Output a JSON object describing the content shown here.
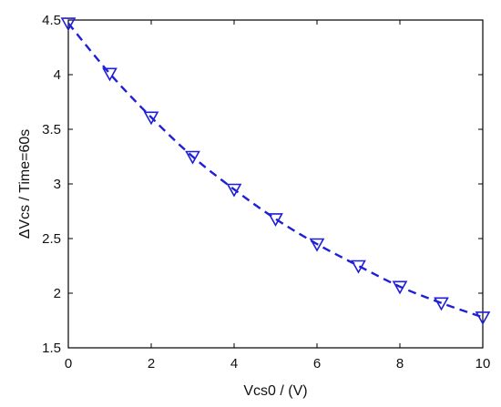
{
  "chart_data": {
    "type": "line",
    "xlabel": "Vcs0 / (V)",
    "ylabel": "ΔVcs / Time=60s",
    "xlim": [
      0,
      10
    ],
    "ylim": [
      1.5,
      4.5
    ],
    "xticks": [
      0,
      2,
      4,
      6,
      8,
      10
    ],
    "yticks": [
      1.5,
      2,
      2.5,
      3,
      3.5,
      4,
      4.5
    ],
    "xtick_labels": [
      "0",
      "2",
      "4",
      "6",
      "8",
      "10"
    ],
    "ytick_labels": [
      "1.5",
      "2",
      "2.5",
      "3",
      "3.5",
      "4",
      "4.5"
    ],
    "grid": false,
    "legend": "none",
    "series": [
      {
        "x": [
          0,
          1,
          2,
          3,
          4,
          5,
          6,
          7,
          8,
          9,
          10
        ],
        "values": [
          4.47,
          4.01,
          3.61,
          3.25,
          2.95,
          2.68,
          2.45,
          2.25,
          2.06,
          1.91,
          1.78
        ],
        "color": "#1f1fd6",
        "line_style": "dashed",
        "marker": "triangle-down"
      }
    ]
  }
}
